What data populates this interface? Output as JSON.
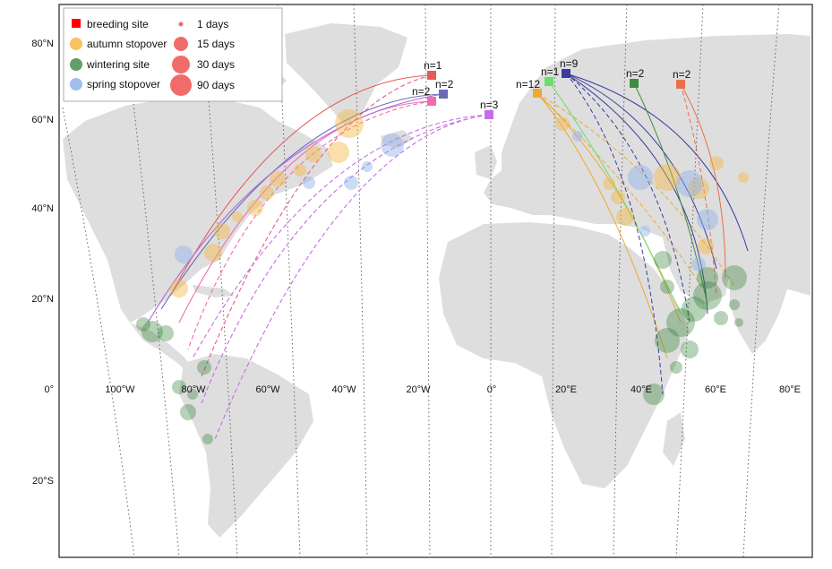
{
  "legend": {
    "items_left": [
      {
        "label": "breeding site",
        "color": "#ff0000",
        "shape": "square"
      },
      {
        "label": "autumn stopover",
        "color": "#f5b942",
        "shape": "circle"
      },
      {
        "label": "wintering site",
        "color": "#2e7d32",
        "shape": "circle"
      },
      {
        "label": "spring stopover",
        "color": "#8fb1ea",
        "shape": "circle"
      }
    ],
    "items_right": [
      {
        "label": "1 days"
      },
      {
        "label": "15 days"
      },
      {
        "label": "30 days"
      },
      {
        "label": "90 days"
      }
    ]
  },
  "lat_labels": [
    "80°N",
    "60°N",
    "40°N",
    "20°N",
    "0°",
    "20°S"
  ],
  "lon_labels": [
    "100°W",
    "80°W",
    "60°W",
    "40°W",
    "20°W",
    "0°",
    "20°E",
    "40°E",
    "60°E",
    "80°E"
  ],
  "breeding_sites": [
    {
      "label": "n=1",
      "color": "#e85a5a"
    },
    {
      "label": "n=2",
      "color": "#6a6ab8"
    },
    {
      "label": "n=2",
      "color": "#f06bb0"
    },
    {
      "label": "n=3",
      "color": "#c86be8"
    },
    {
      "label": "n=12",
      "color": "#f0a830"
    },
    {
      "label": "n=1",
      "color": "#66e066"
    },
    {
      "label": "n=9",
      "color": "#3a3aa0"
    },
    {
      "label": "n=2",
      "color": "#3e8e3e"
    },
    {
      "label": "n=2",
      "color": "#e8704a"
    }
  ],
  "colors": {
    "land": "#dedede",
    "autumn": "#f5b942",
    "wintering": "#2e7d32",
    "spring": "#8fb1ea",
    "breeding": "#ff0000",
    "frame": "#222222"
  }
}
